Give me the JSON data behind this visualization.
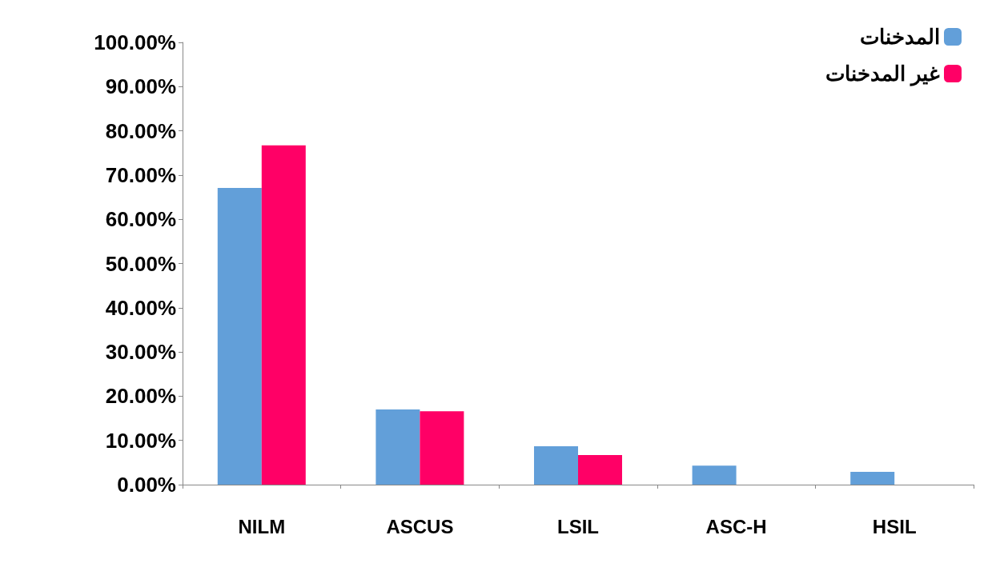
{
  "chart_data": {
    "type": "bar",
    "categories": [
      "NILM",
      "ASCUS",
      "LSIL",
      "ASC-H",
      "HSIL"
    ],
    "series": [
      {
        "name": "المدخنات",
        "color": "#629fd9",
        "values": [
          67.1,
          17,
          8.7,
          4.3,
          2.9
        ]
      },
      {
        "name": "غير المدخنات",
        "color": "#ff0066",
        "values": [
          76.7,
          16.6,
          6.7,
          0,
          0
        ]
      }
    ],
    "ylim": [
      0,
      100
    ],
    "yticks": [
      {
        "value": 0,
        "label": "0.00%"
      },
      {
        "value": 10,
        "label": "10.00%"
      },
      {
        "value": 20,
        "label": "20.00%"
      },
      {
        "value": 30,
        "label": "30.00%"
      },
      {
        "value": 40,
        "label": "40.00%"
      },
      {
        "value": 50,
        "label": "50.00%"
      },
      {
        "value": 60,
        "label": "60.00%"
      },
      {
        "value": 70,
        "label": "70.00%"
      },
      {
        "value": 80,
        "label": "80.00%"
      },
      {
        "value": 90,
        "label": "90.00%"
      },
      {
        "value": 100,
        "label": "100.00%"
      }
    ],
    "grid": false,
    "legend": "top right"
  }
}
